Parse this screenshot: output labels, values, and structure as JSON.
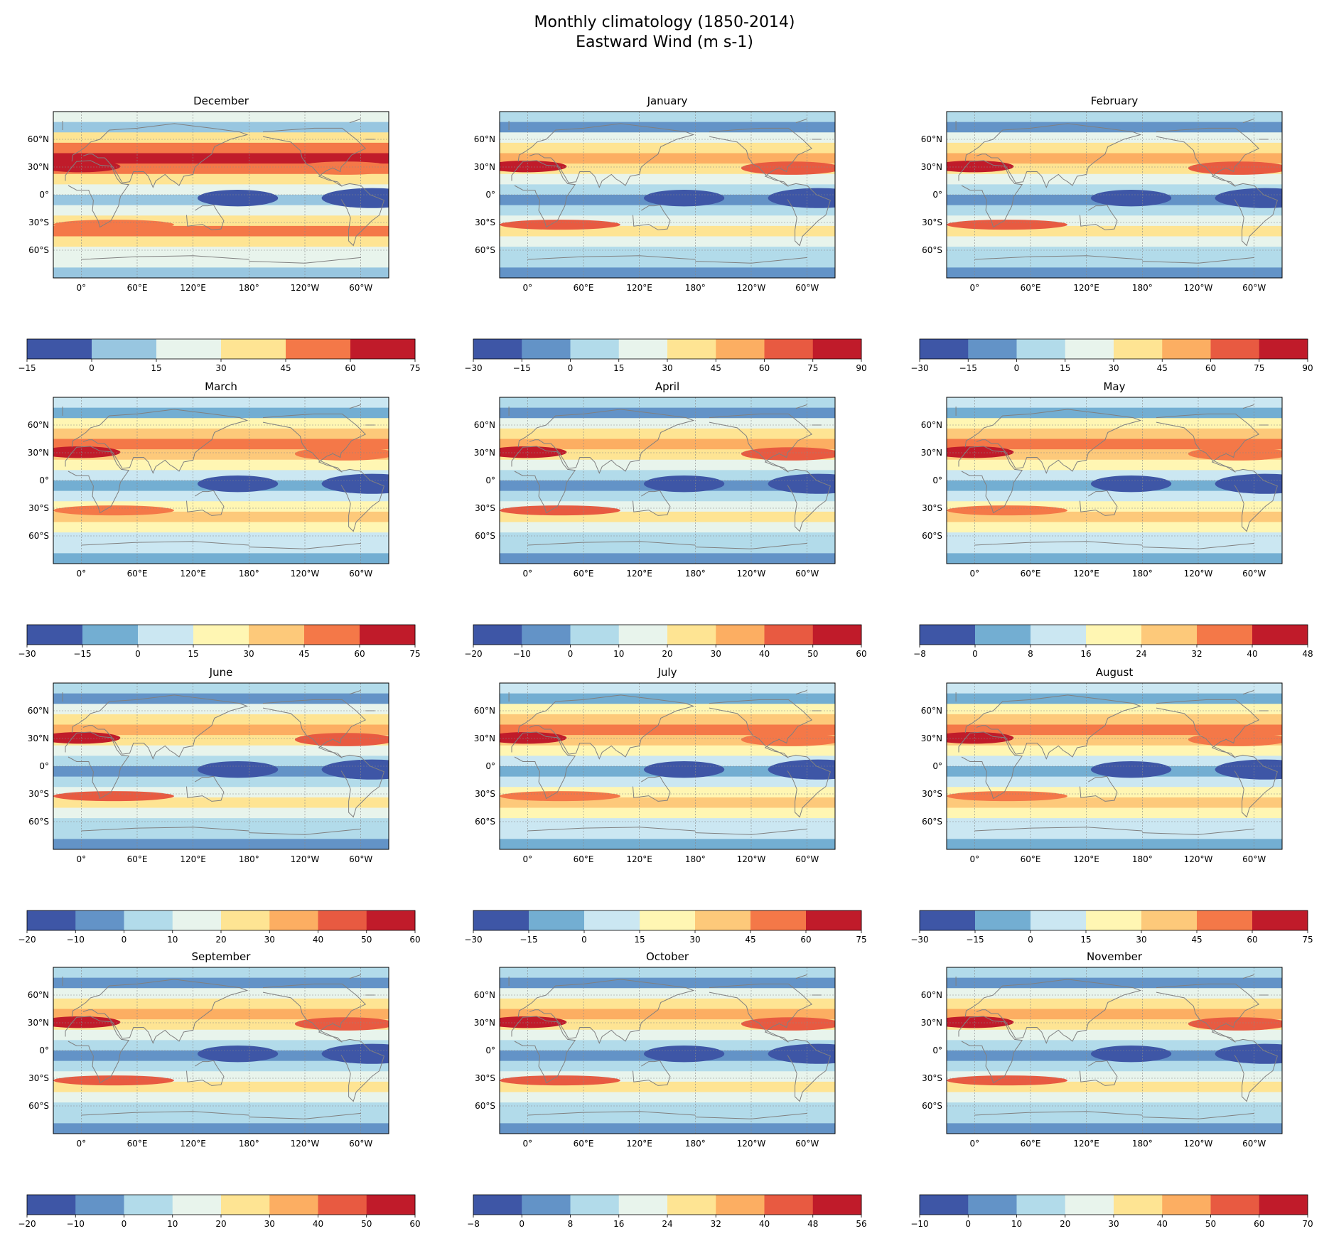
{
  "figure": {
    "title_line1": "Monthly climatology (1850-2014)",
    "title_line2": "Eastward Wind (m s-1)"
  },
  "map_axes": {
    "lat_ticks": [
      "60°N",
      "30°N",
      "0°",
      "30°S",
      "60°S"
    ],
    "lon_ticks": [
      "120°E",
      "180°",
      "120°W",
      "60°W",
      "0°",
      "60°E"
    ]
  },
  "palettes": {
    "eight_level": [
      "#3e56a6",
      "#6393c7",
      "#b2dbea",
      "#e8f4ec",
      "#fee493",
      "#fcae62",
      "#e85a41",
      "#c01b2a"
    ],
    "seven_level": [
      "#3e56a6",
      "#73aed2",
      "#cbe7f2",
      "#fff6b3",
      "#fdc97a",
      "#f47848",
      "#c01b2a"
    ],
    "six_level": [
      "#3e56a6",
      "#98c6e0",
      "#e8f4ec",
      "#fee493",
      "#f47848",
      "#c01b2a"
    ]
  },
  "chart_data": [
    {
      "type": "contour-map",
      "title": "December",
      "palette": "six_level",
      "levels": [
        -15,
        0,
        15,
        30,
        45,
        60,
        75
      ],
      "level_labels": [
        "−15",
        "0",
        "15",
        "30",
        "45",
        "60",
        "75"
      ]
    },
    {
      "type": "contour-map",
      "title": "January",
      "palette": "eight_level",
      "levels": [
        -30,
        -15,
        0,
        15,
        30,
        45,
        60,
        75,
        90
      ],
      "level_labels": [
        "−30",
        "−15",
        "0",
        "15",
        "30",
        "45",
        "60",
        "75",
        "90"
      ]
    },
    {
      "type": "contour-map",
      "title": "February",
      "palette": "eight_level",
      "levels": [
        -30,
        -15,
        0,
        15,
        30,
        45,
        60,
        75,
        90
      ],
      "level_labels": [
        "−30",
        "−15",
        "0",
        "15",
        "30",
        "45",
        "60",
        "75",
        "90"
      ]
    },
    {
      "type": "contour-map",
      "title": "March",
      "palette": "seven_level",
      "levels": [
        -30,
        -15,
        0,
        15,
        30,
        45,
        60,
        75
      ],
      "level_labels": [
        "−30",
        "−15",
        "0",
        "15",
        "30",
        "45",
        "60",
        "75"
      ]
    },
    {
      "type": "contour-map",
      "title": "April",
      "palette": "eight_level",
      "levels": [
        -20,
        -10,
        0,
        10,
        20,
        30,
        40,
        50,
        60
      ],
      "level_labels": [
        "−20",
        "−10",
        "0",
        "10",
        "20",
        "30",
        "40",
        "50",
        "60"
      ]
    },
    {
      "type": "contour-map",
      "title": "May",
      "palette": "seven_level",
      "levels": [
        -8,
        0,
        8,
        16,
        24,
        32,
        40,
        48
      ],
      "level_labels": [
        "−8",
        "0",
        "8",
        "16",
        "24",
        "32",
        "40",
        "48"
      ]
    },
    {
      "type": "contour-map",
      "title": "June",
      "palette": "eight_level",
      "levels": [
        -20,
        -10,
        0,
        10,
        20,
        30,
        40,
        50,
        60
      ],
      "level_labels": [
        "−20",
        "−10",
        "0",
        "10",
        "20",
        "30",
        "40",
        "50",
        "60"
      ]
    },
    {
      "type": "contour-map",
      "title": "July",
      "palette": "seven_level",
      "levels": [
        -30,
        -15,
        0,
        15,
        30,
        45,
        60,
        75
      ],
      "level_labels": [
        "−30",
        "−15",
        "0",
        "15",
        "30",
        "45",
        "60",
        "75"
      ]
    },
    {
      "type": "contour-map",
      "title": "August",
      "palette": "seven_level",
      "levels": [
        -30,
        -15,
        0,
        15,
        30,
        45,
        60,
        75
      ],
      "level_labels": [
        "−30",
        "−15",
        "0",
        "15",
        "30",
        "45",
        "60",
        "75"
      ]
    },
    {
      "type": "contour-map",
      "title": "September",
      "palette": "eight_level",
      "levels": [
        -20,
        -10,
        0,
        10,
        20,
        30,
        40,
        50,
        60
      ],
      "level_labels": [
        "−20",
        "−10",
        "0",
        "10",
        "20",
        "30",
        "40",
        "50",
        "60"
      ]
    },
    {
      "type": "contour-map",
      "title": "October",
      "palette": "eight_level",
      "levels": [
        -8,
        0,
        8,
        16,
        24,
        32,
        40,
        48,
        56
      ],
      "level_labels": [
        "−8",
        "0",
        "8",
        "16",
        "24",
        "32",
        "40",
        "48",
        "56"
      ]
    },
    {
      "type": "contour-map",
      "title": "November",
      "palette": "eight_level",
      "levels": [
        -10,
        0,
        10,
        20,
        30,
        40,
        50,
        60,
        70
      ],
      "level_labels": [
        "−10",
        "0",
        "10",
        "20",
        "30",
        "40",
        "50",
        "60",
        "70"
      ]
    }
  ]
}
